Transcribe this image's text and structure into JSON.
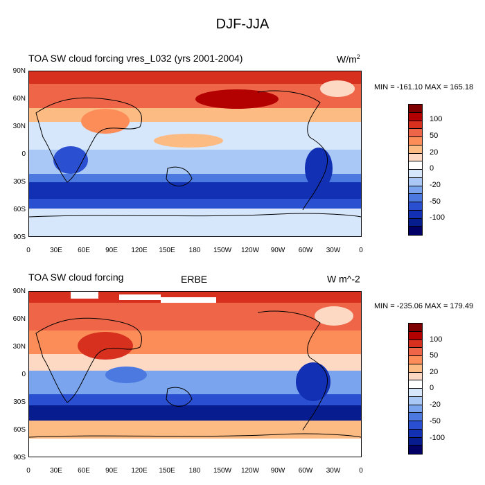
{
  "figure_title": "DJF-JJA",
  "panels": [
    {
      "left_title": "TOA SW cloud forcing vres_L032 (yrs 2001-2004)",
      "center_title": "",
      "units_base": "W/m",
      "units_sup": "2",
      "minmax": "MIN = -161.10 MAX = 165.18"
    },
    {
      "left_title": "TOA SW cloud forcing",
      "center_title": "ERBE",
      "units_base": "W m^-2",
      "units_sup": "",
      "minmax": "MIN = -235.06 MAX = 179.49"
    }
  ],
  "lat_labels": [
    "90N",
    "60N",
    "30N",
    "0",
    "30S",
    "60S",
    "90S"
  ],
  "lon_labels": [
    "0",
    "30E",
    "60E",
    "90E",
    "120E",
    "150E",
    "180",
    "150W",
    "120W",
    "90W",
    "60W",
    "30W",
    "0"
  ],
  "colorbar": {
    "colors": [
      "#7f0000",
      "#b30000",
      "#d7301f",
      "#ef6548",
      "#fc8d59",
      "#fdbb84",
      "#fdd9c4",
      "#ffffff",
      "#d6e6fb",
      "#aac8f5",
      "#7aa5ee",
      "#4b79e0",
      "#2a4fd1",
      "#1230b4",
      "#071d8f",
      "#000066"
    ],
    "labels": [
      "100",
      "50",
      "20",
      "0",
      "-20",
      "-50",
      "-100"
    ]
  }
}
